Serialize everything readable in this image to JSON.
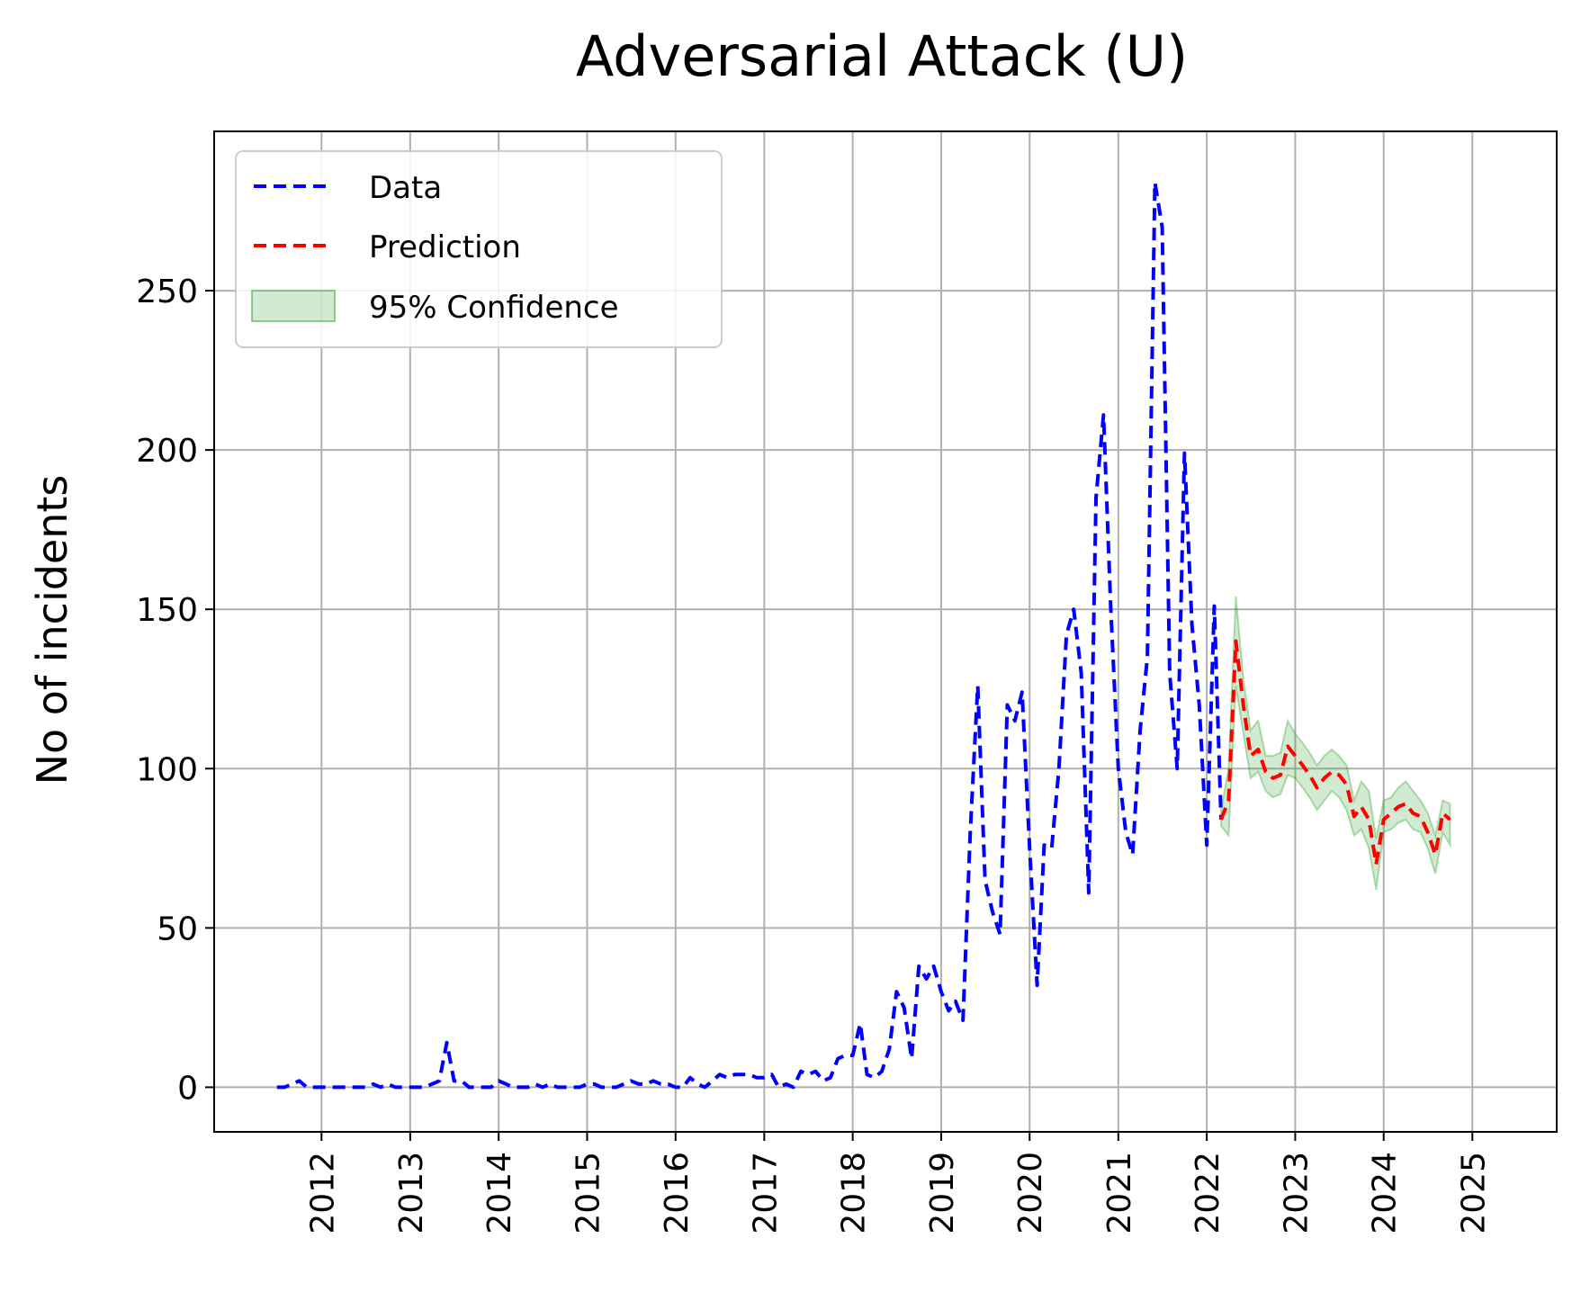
{
  "chart_data": {
    "type": "line",
    "title": "Adversarial Attack (U)",
    "xlabel": "",
    "ylabel": "No of incidents",
    "x_axis": "date",
    "xlim": [
      "2010-10-15",
      "2025-12-15"
    ],
    "ylim": [
      -14,
      300
    ],
    "x_ticks": [
      "2012-01-01",
      "2013-01-01",
      "2014-01-01",
      "2015-01-01",
      "2016-01-01",
      "2017-01-01",
      "2018-01-01",
      "2019-01-01",
      "2020-01-01",
      "2021-01-01",
      "2022-01-01",
      "2023-01-01",
      "2024-01-01",
      "2025-01-01"
    ],
    "x_tick_labels": [
      "2012",
      "2013",
      "2014",
      "2015",
      "2016",
      "2017",
      "2018",
      "2019",
      "2020",
      "2021",
      "2022",
      "2023",
      "2024",
      "2025"
    ],
    "y_ticks": [
      0,
      50,
      100,
      150,
      200,
      250
    ],
    "y_tick_labels": [
      "0",
      "50",
      "100",
      "150",
      "200",
      "250"
    ],
    "grid": true,
    "legend": {
      "position": "top-left",
      "entries": [
        {
          "label": "Data",
          "style": "dashed-line",
          "color": "#0000ff"
        },
        {
          "label": "Prediction",
          "style": "dashed-line",
          "color": "#ff0000"
        },
        {
          "label": "95% Confidence",
          "style": "patch",
          "color": "#2ca02c"
        }
      ]
    },
    "series": [
      {
        "name": "Data",
        "color": "#0000ff",
        "style": "dashed",
        "points": [
          [
            "2011-07-01",
            0
          ],
          [
            "2011-08-01",
            0
          ],
          [
            "2011-09-01",
            1
          ],
          [
            "2011-10-01",
            2
          ],
          [
            "2011-11-01",
            0
          ],
          [
            "2011-12-01",
            0
          ],
          [
            "2012-01-01",
            0
          ],
          [
            "2012-02-01",
            0
          ],
          [
            "2012-03-01",
            0
          ],
          [
            "2012-04-01",
            0
          ],
          [
            "2012-05-01",
            0
          ],
          [
            "2012-06-01",
            0
          ],
          [
            "2012-07-01",
            0
          ],
          [
            "2012-08-01",
            1
          ],
          [
            "2012-09-01",
            0
          ],
          [
            "2012-10-01",
            1
          ],
          [
            "2012-11-01",
            0
          ],
          [
            "2012-12-01",
            0
          ],
          [
            "2013-01-01",
            0
          ],
          [
            "2013-02-01",
            0
          ],
          [
            "2013-03-01",
            0
          ],
          [
            "2013-04-01",
            1
          ],
          [
            "2013-05-01",
            2
          ],
          [
            "2013-06-01",
            14
          ],
          [
            "2013-07-01",
            2
          ],
          [
            "2013-08-01",
            2
          ],
          [
            "2013-09-01",
            0
          ],
          [
            "2013-10-01",
            0
          ],
          [
            "2013-11-01",
            0
          ],
          [
            "2013-12-01",
            0
          ],
          [
            "2014-01-01",
            2
          ],
          [
            "2014-02-01",
            1
          ],
          [
            "2014-03-01",
            0
          ],
          [
            "2014-04-01",
            0
          ],
          [
            "2014-05-01",
            0
          ],
          [
            "2014-06-01",
            1
          ],
          [
            "2014-07-01",
            0
          ],
          [
            "2014-08-01",
            1
          ],
          [
            "2014-09-01",
            0
          ],
          [
            "2014-10-01",
            0
          ],
          [
            "2014-11-01",
            0
          ],
          [
            "2014-12-01",
            0
          ],
          [
            "2015-01-01",
            1
          ],
          [
            "2015-02-01",
            1
          ],
          [
            "2015-03-01",
            0
          ],
          [
            "2015-04-01",
            0
          ],
          [
            "2015-05-01",
            0
          ],
          [
            "2015-06-01",
            1
          ],
          [
            "2015-07-01",
            2
          ],
          [
            "2015-08-01",
            1
          ],
          [
            "2015-09-01",
            1
          ],
          [
            "2015-10-01",
            2
          ],
          [
            "2015-11-01",
            1
          ],
          [
            "2015-12-01",
            1
          ],
          [
            "2016-01-01",
            0
          ],
          [
            "2016-02-01",
            0
          ],
          [
            "2016-03-01",
            3
          ],
          [
            "2016-04-01",
            1
          ],
          [
            "2016-05-01",
            0
          ],
          [
            "2016-06-01",
            2
          ],
          [
            "2016-07-01",
            4
          ],
          [
            "2016-08-01",
            3
          ],
          [
            "2016-09-01",
            4
          ],
          [
            "2016-10-01",
            4
          ],
          [
            "2016-11-01",
            4
          ],
          [
            "2016-12-01",
            3
          ],
          [
            "2017-01-01",
            3
          ],
          [
            "2017-02-01",
            4
          ],
          [
            "2017-03-01",
            0
          ],
          [
            "2017-04-01",
            1
          ],
          [
            "2017-05-01",
            0
          ],
          [
            "2017-06-01",
            5
          ],
          [
            "2017-07-01",
            4
          ],
          [
            "2017-08-01",
            5
          ],
          [
            "2017-09-01",
            2
          ],
          [
            "2017-10-01",
            3
          ],
          [
            "2017-11-01",
            9
          ],
          [
            "2017-12-01",
            10
          ],
          [
            "2018-01-01",
            10
          ],
          [
            "2018-02-01",
            20
          ],
          [
            "2018-03-01",
            4
          ],
          [
            "2018-04-01",
            3
          ],
          [
            "2018-05-01",
            5
          ],
          [
            "2018-06-01",
            12
          ],
          [
            "2018-07-01",
            30
          ],
          [
            "2018-08-01",
            25
          ],
          [
            "2018-09-01",
            9
          ],
          [
            "2018-10-01",
            38
          ],
          [
            "2018-11-01",
            34
          ],
          [
            "2018-12-01",
            38
          ],
          [
            "2019-01-01",
            30
          ],
          [
            "2019-02-01",
            24
          ],
          [
            "2019-03-01",
            27
          ],
          [
            "2019-04-01",
            21
          ],
          [
            "2019-05-01",
            80
          ],
          [
            "2019-06-01",
            126
          ],
          [
            "2019-07-01",
            65
          ],
          [
            "2019-08-01",
            55
          ],
          [
            "2019-09-01",
            48
          ],
          [
            "2019-10-01",
            120
          ],
          [
            "2019-11-01",
            115
          ],
          [
            "2019-12-01",
            124
          ],
          [
            "2020-01-01",
            75
          ],
          [
            "2020-02-01",
            32
          ],
          [
            "2020-03-01",
            76
          ],
          [
            "2020-04-01",
            75
          ],
          [
            "2020-05-01",
            100
          ],
          [
            "2020-06-01",
            142
          ],
          [
            "2020-07-01",
            150
          ],
          [
            "2020-08-01",
            130
          ],
          [
            "2020-09-01",
            61
          ],
          [
            "2020-10-01",
            185
          ],
          [
            "2020-11-01",
            211
          ],
          [
            "2020-12-01",
            150
          ],
          [
            "2021-01-01",
            100
          ],
          [
            "2021-02-01",
            80
          ],
          [
            "2021-03-01",
            73
          ],
          [
            "2021-04-01",
            112
          ],
          [
            "2021-05-01",
            135
          ],
          [
            "2021-06-01",
            284
          ],
          [
            "2021-07-01",
            270
          ],
          [
            "2021-08-01",
            130
          ],
          [
            "2021-09-01",
            100
          ],
          [
            "2021-10-01",
            199
          ],
          [
            "2021-11-01",
            145
          ],
          [
            "2021-12-01",
            120
          ],
          [
            "2022-01-01",
            76
          ],
          [
            "2022-02-01",
            151
          ],
          [
            "2022-03-01",
            84
          ]
        ]
      },
      {
        "name": "Prediction",
        "color": "#ff0000",
        "style": "dashed",
        "points": [
          [
            "2022-03-01",
            84
          ],
          [
            "2022-04-01",
            90
          ],
          [
            "2022-05-01",
            140
          ],
          [
            "2022-06-01",
            120
          ],
          [
            "2022-07-01",
            104
          ],
          [
            "2022-08-01",
            106
          ],
          [
            "2022-09-01",
            99
          ],
          [
            "2022-10-01",
            97
          ],
          [
            "2022-11-01",
            98
          ],
          [
            "2022-12-01",
            107
          ],
          [
            "2023-01-01",
            104
          ],
          [
            "2023-02-01",
            101
          ],
          [
            "2023-03-01",
            98
          ],
          [
            "2023-04-01",
            94
          ],
          [
            "2023-05-01",
            97
          ],
          [
            "2023-06-01",
            99
          ],
          [
            "2023-07-01",
            98
          ],
          [
            "2023-08-01",
            95
          ],
          [
            "2023-09-01",
            85
          ],
          [
            "2023-10-01",
            88
          ],
          [
            "2023-11-01",
            84
          ],
          [
            "2023-12-01",
            70
          ],
          [
            "2024-01-01",
            84
          ],
          [
            "2024-02-01",
            86
          ],
          [
            "2024-03-01",
            88
          ],
          [
            "2024-04-01",
            89
          ],
          [
            "2024-05-01",
            86
          ],
          [
            "2024-06-01",
            85
          ],
          [
            "2024-07-01",
            80
          ],
          [
            "2024-08-01",
            73
          ],
          [
            "2024-09-01",
            86
          ],
          [
            "2024-10-01",
            84
          ]
        ]
      }
    ],
    "confidence_band": {
      "name": "95% Confidence",
      "color": "#2ca02c",
      "opacity": 0.22,
      "x": [
        "2022-03-01",
        "2022-04-01",
        "2022-05-01",
        "2022-06-01",
        "2022-07-01",
        "2022-08-01",
        "2022-09-01",
        "2022-10-01",
        "2022-11-01",
        "2022-12-01",
        "2023-01-01",
        "2023-02-01",
        "2023-03-01",
        "2023-04-01",
        "2023-05-01",
        "2023-06-01",
        "2023-07-01",
        "2023-08-01",
        "2023-09-01",
        "2023-10-01",
        "2023-11-01",
        "2023-12-01",
        "2024-01-01",
        "2024-02-01",
        "2024-03-01",
        "2024-04-01",
        "2024-05-01",
        "2024-06-01",
        "2024-07-01",
        "2024-08-01",
        "2024-09-01",
        "2024-10-01"
      ],
      "lower": [
        82,
        79,
        126,
        111,
        97,
        99,
        93,
        91,
        92,
        98,
        97,
        94,
        91,
        87,
        90,
        93,
        91,
        87,
        79,
        81,
        75,
        62,
        80,
        81,
        83,
        84,
        81,
        80,
        75,
        67,
        80,
        76
      ],
      "upper": [
        87,
        100,
        154,
        128,
        112,
        115,
        104,
        104,
        105,
        115,
        111,
        108,
        105,
        101,
        104,
        106,
        104,
        101,
        90,
        96,
        93,
        78,
        90,
        91,
        94,
        96,
        93,
        90,
        86,
        79,
        90,
        89
      ]
    }
  }
}
